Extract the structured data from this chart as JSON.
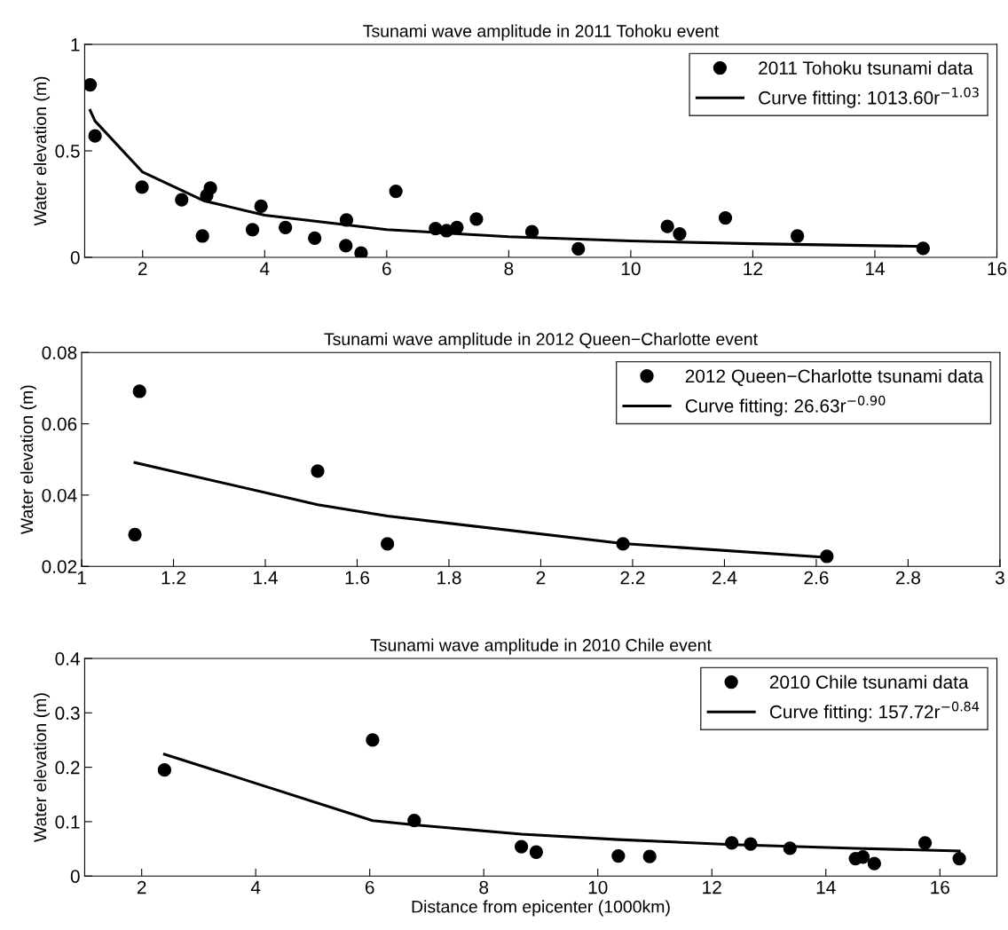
{
  "chart_data": [
    {
      "type": "scatter",
      "title": "Tsunami wave amplitude in 2011 Tohoku event",
      "ylabel": "Water elevation (m)",
      "xlim": [
        1.05,
        16
      ],
      "xticks": [
        2,
        4,
        6,
        8,
        10,
        12,
        14,
        16
      ],
      "ylim": [
        0,
        1
      ],
      "yticks": [
        0,
        0.5,
        1
      ],
      "legend": "top right",
      "grid": false,
      "series": [
        {
          "name": "2011 Tohoku tsunami data",
          "marker": "circle",
          "color": "#000000",
          "x": [
            1.14,
            1.22,
            1.99,
            2.64,
            2.98,
            3.05,
            3.11,
            3.8,
            3.94,
            4.34,
            4.82,
            5.34,
            5.33,
            5.58,
            6.15,
            6.8,
            6.98,
            7.15,
            7.47,
            8.38,
            9.14,
            10.6,
            10.8,
            11.55,
            12.73,
            14.79
          ],
          "values": [
            0.81,
            0.57,
            0.33,
            0.27,
            0.1,
            0.29,
            0.325,
            0.13,
            0.24,
            0.14,
            0.09,
            0.175,
            0.055,
            0.02,
            0.31,
            0.135,
            0.125,
            0.14,
            0.18,
            0.12,
            0.04,
            0.145,
            0.11,
            0.185,
            0.1,
            0.042
          ]
        },
        {
          "name": "Curve fitting: 1013.60r$^{−1.03}$",
          "type": "line",
          "line_style": "solid",
          "color": "#000000",
          "x": [
            1.14,
            1.22,
            2,
            3,
            4,
            6,
            8,
            10,
            12,
            14.79
          ],
          "values": [
            0.69,
            0.64,
            0.4,
            0.266,
            0.198,
            0.13,
            0.097,
            0.077,
            0.064,
            0.051
          ]
        }
      ]
    },
    {
      "type": "scatter",
      "title": "Tsunami wave amplitude in 2012 Queen−Charlotte event",
      "ylabel": "Water elevation (m)",
      "xlim": [
        1,
        3
      ],
      "xticks": [
        1,
        1.2,
        1.4,
        1.6,
        1.8,
        2,
        2.2,
        2.4,
        2.6,
        2.8,
        3
      ],
      "ylim": [
        0.02,
        0.08
      ],
      "yticks": [
        0.02,
        0.04,
        0.06,
        0.08
      ],
      "legend": "top right",
      "grid": false,
      "series": [
        {
          "name": "2012 Queen−Charlotte tsunami data",
          "marker": "circle",
          "color": "#000000",
          "x": [
            1.126,
            1.116,
            1.514,
            1.666,
            2.179,
            2.623
          ],
          "values": [
            0.0691,
            0.0289,
            0.0467,
            0.0263,
            0.0263,
            0.0228
          ]
        },
        {
          "name": "Curve fitting: 26.63r$^{−0.90}$",
          "type": "line",
          "line_style": "solid",
          "color": "#000000",
          "x": [
            1.116,
            1.514,
            1.666,
            2.179,
            2.623
          ],
          "values": [
            0.0491,
            0.0373,
            0.0341,
            0.0264,
            0.0225
          ]
        }
      ]
    },
    {
      "type": "scatter",
      "title": "Tsunami wave amplitude in 2010 Chile event",
      "xlabel": "Distance from epicenter (1000km)",
      "ylabel": "Water elevation (m)",
      "xlim": [
        1,
        17
      ],
      "xticks": [
        2,
        4,
        6,
        8,
        10,
        12,
        14,
        16
      ],
      "ylim": [
        0,
        0.4
      ],
      "yticks": [
        0,
        0.1,
        0.2,
        0.3,
        0.4
      ],
      "legend": "top right",
      "grid": false,
      "series": [
        {
          "name": "2010 Chile tsunami data",
          "marker": "circle",
          "color": "#000000",
          "x": [
            2.4,
            6.05,
            6.78,
            8.66,
            8.92,
            10.36,
            10.91,
            12.35,
            12.68,
            13.37,
            14.52,
            14.65,
            14.85,
            15.74,
            16.34
          ],
          "values": [
            0.195,
            0.25,
            0.102,
            0.054,
            0.044,
            0.037,
            0.036,
            0.061,
            0.059,
            0.051,
            0.032,
            0.035,
            0.023,
            0.061,
            0.032
          ]
        },
        {
          "name": "Curve fitting: 157.72r$^{−0.84}$",
          "type": "line",
          "line_style": "solid",
          "color": "#000000",
          "x": [
            2.4,
            6.05,
            6.78,
            8.66,
            10.36,
            12.35,
            14.52,
            16.34
          ],
          "values": [
            0.224,
            0.102,
            0.094,
            0.077,
            0.067,
            0.058,
            0.051,
            0.046
          ]
        }
      ]
    }
  ]
}
